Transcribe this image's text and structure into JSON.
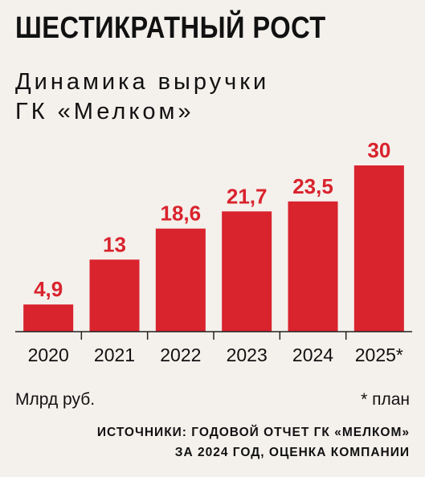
{
  "chart_data": {
    "type": "bar",
    "title": "ШЕСТИКРАТНЫЙ РОСТ",
    "subtitle": "Динамика выручки\nГК «Мелком»",
    "categories": [
      "2020",
      "2021",
      "2022",
      "2023",
      "2024",
      "2025*"
    ],
    "values": [
      4.9,
      13,
      18.6,
      21.7,
      23.5,
      30
    ],
    "value_labels": [
      "4,9",
      "13",
      "18,6",
      "21,7",
      "23,5",
      "30"
    ],
    "unit_label": "Млрд руб.",
    "note": "* план",
    "source": "ИСТОЧНИКИ: ГОДОВОЙ ОТЧЕТ ГК «МЕЛКОМ»\nЗА 2024 ГОД, ОЦЕНКА КОМПАНИИ",
    "ylim": [
      0,
      30
    ],
    "grid": false,
    "bar_color": "#d9232d",
    "label_color": "#d9232d",
    "axis_color": "#222222"
  }
}
